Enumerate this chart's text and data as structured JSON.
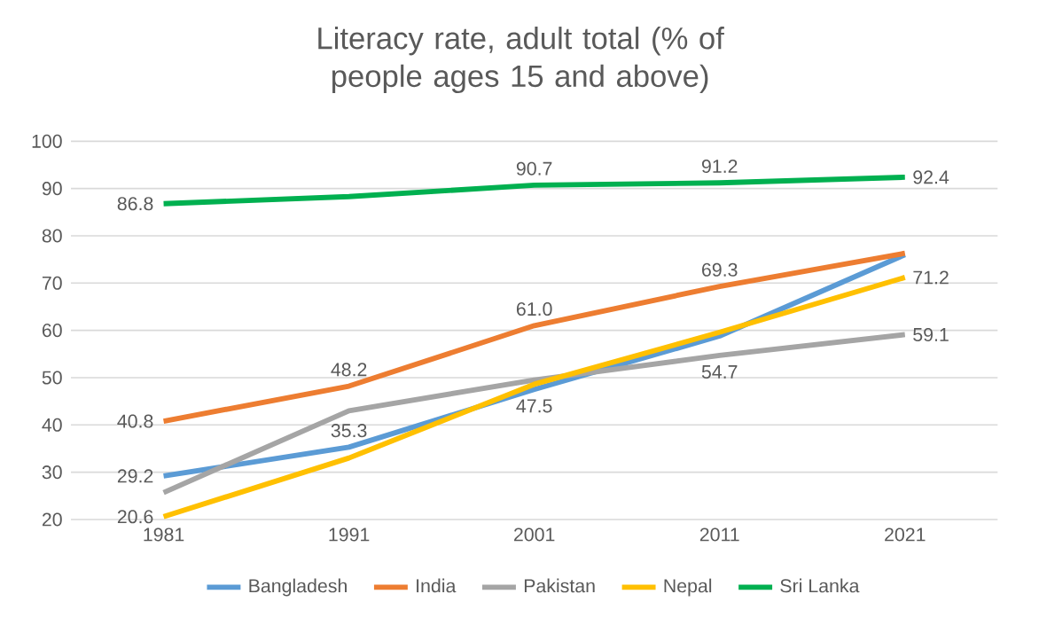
{
  "chart_data": {
    "type": "line",
    "title": "Literacy rate, adult total (% of people ages 15 and above)",
    "categories": [
      "1981",
      "1991",
      "2001",
      "2011",
      "2021"
    ],
    "series": [
      {
        "name": "Bangladesh",
        "color": "#5b9bd5",
        "values": [
          29.2,
          35.3,
          47.5,
          58.8,
          76.0
        ],
        "value_labels": [
          "29.2",
          "35.3",
          "47.5",
          null,
          null
        ]
      },
      {
        "name": "India",
        "color": "#ed7d31",
        "values": [
          40.8,
          48.2,
          61.0,
          69.3,
          76.3
        ],
        "value_labels": [
          "40.8",
          "48.2",
          "61.0",
          "69.3",
          null
        ]
      },
      {
        "name": "Pakistan",
        "color": "#a5a5a5",
        "values": [
          25.7,
          43.0,
          49.5,
          54.7,
          59.1
        ],
        "value_labels": [
          null,
          null,
          null,
          "54.7",
          "59.1"
        ]
      },
      {
        "name": "Nepal",
        "color": "#ffc000",
        "values": [
          20.6,
          33.0,
          48.6,
          59.6,
          71.2
        ],
        "value_labels": [
          "20.6",
          null,
          null,
          null,
          "71.2"
        ]
      },
      {
        "name": "Sri Lanka",
        "color": "#00b050",
        "values": [
          86.8,
          88.3,
          90.7,
          91.2,
          92.4
        ],
        "value_labels": [
          "86.8",
          null,
          "90.7",
          "91.2",
          "92.4"
        ]
      }
    ],
    "ylim": [
      20,
      100
    ],
    "yticks": [
      20,
      30,
      40,
      50,
      60,
      70,
      80,
      90,
      100
    ],
    "grid": "y",
    "legend": "bottom",
    "marker": "none",
    "line_style": "solid"
  }
}
